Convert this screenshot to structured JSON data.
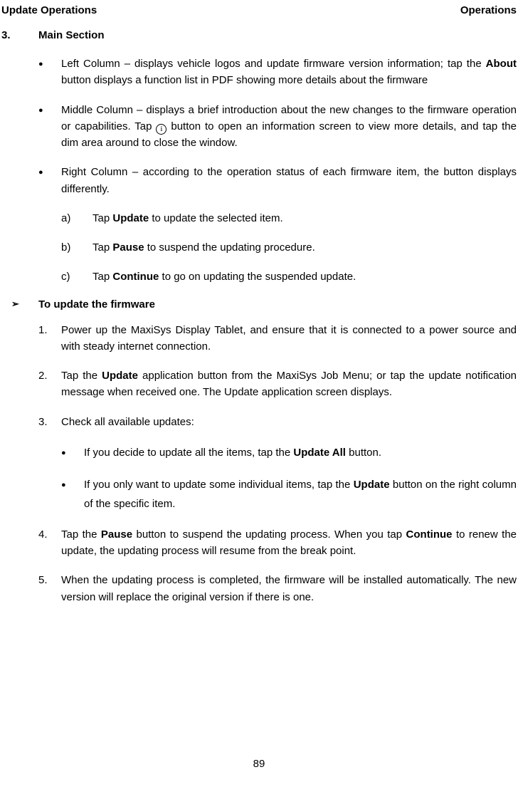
{
  "header": {
    "left": "Update Operations",
    "right": "Operations"
  },
  "section": {
    "num": "3.",
    "title": "Main Section"
  },
  "cols": {
    "left": {
      "pre": "Left Column – displays vehicle logos and update firmware version information; tap the ",
      "about": "About",
      "post": " button displays a function list in PDF showing more details about the firmware"
    },
    "mid": {
      "pre": "Middle Column – displays a brief introduction about the new changes to the firmware operation or capabilities. Tap ",
      "post": " button to open an information screen to view more details, and tap the dim area around to close the window."
    },
    "right": {
      "text": "Right Column – according to the operation status of each firmware item, the button displays differently."
    },
    "letters": {
      "a": {
        "l": "a)",
        "pre": "Tap ",
        "b": "Update",
        "post": " to update the selected item."
      },
      "b": {
        "l": "b)",
        "pre": "Tap ",
        "b": "Pause",
        "post": " to suspend the updating procedure."
      },
      "c": {
        "l": "c)",
        "pre": "Tap ",
        "b": "Continue",
        "post": " to go on updating the suspended update."
      }
    }
  },
  "proc": {
    "title": "To update the firmware"
  },
  "steps": {
    "s1": {
      "n": "1.",
      "t": "Power up the MaxiSys Display Tablet, and ensure that it is connected to a power source and with steady internet connection."
    },
    "s2": {
      "n": "2.",
      "pre": "Tap the ",
      "b": "Update",
      "post": " application button from the MaxiSys Job Menu; or tap the update notification message when received one. The Update application screen displays."
    },
    "s3": {
      "n": "3.",
      "t": "Check all available updates:"
    },
    "s3a": {
      "pre": "If you decide to update all the items, tap the ",
      "b": "Update All",
      "post": " button."
    },
    "s3b": {
      "pre": "If you only want to update some individual items, tap the ",
      "b": "Update",
      "post": " button on the right column of the specific item."
    },
    "s4": {
      "n": "4.",
      "pre": "Tap the ",
      "b1": "Pause",
      "mid": " button to suspend the updating process. When you tap ",
      "b2": "Continue",
      "post": " to renew the update, the updating process will resume from the break point."
    },
    "s5": {
      "n": "5.",
      "t": "When the updating process is completed, the firmware will be installed automatically. The new version will replace the original version if there is one."
    }
  },
  "pageNumber": "89",
  "info_icon_label": "i"
}
